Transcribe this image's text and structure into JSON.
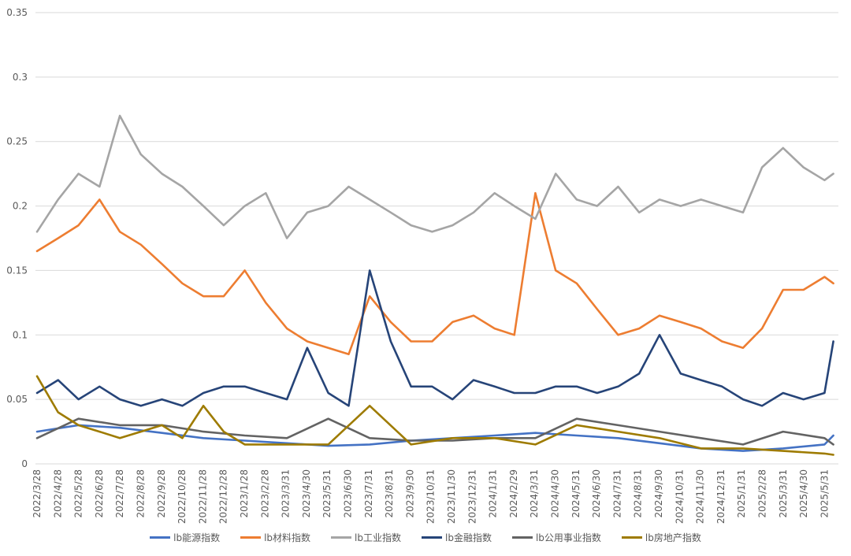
{
  "chart_data": {
    "type": "line",
    "title": "",
    "xlabel": "",
    "ylabel": "",
    "ylim": [
      0,
      0.35
    ],
    "yticks": [
      "0",
      "0.05",
      "0.1",
      "0.15",
      "0.2",
      "0.25",
      "0.3",
      "0.35"
    ],
    "xticks": [
      "2022/3/28",
      "2022/4/28",
      "2022/5/28",
      "2022/6/28",
      "2022/7/28",
      "2022/8/28",
      "2022/9/28",
      "2022/10/28",
      "2022/11/28",
      "2022/12/28",
      "2023/1/28",
      "2023/2/28",
      "2023/3/31",
      "2023/4/30",
      "2023/5/31",
      "2023/6/30",
      "2023/7/31",
      "2023/8/31",
      "2023/9/30",
      "2023/10/31",
      "2023/11/30",
      "2023/12/31",
      "2024/1/31",
      "2024/2/29",
      "2024/3/31",
      "2024/4/30",
      "2024/5/31",
      "2024/6/30",
      "2024/7/31",
      "2024/8/31",
      "2024/9/30",
      "2024/10/31",
      "2024/11/30",
      "2024/12/31",
      "2025/1/31",
      "2025/2/28",
      "2025/3/31",
      "2025/4/30",
      "2025/5/31"
    ],
    "grid": true,
    "legend_position": "bottom",
    "series": [
      {
        "name": "lb能源指数",
        "color": "#4472C4",
        "x": [
          "2022/3/28",
          "2022/5/28",
          "2022/7/28",
          "2022/9/28",
          "2022/11/28",
          "2023/1/28",
          "2023/3/31",
          "2023/5/31",
          "2023/7/31",
          "2023/9/30",
          "2023/11/30",
          "2024/1/31",
          "2024/3/31",
          "2024/5/31",
          "2024/7/31",
          "2024/9/30",
          "2024/11/30",
          "2025/1/31",
          "2025/3/31",
          "2025/5/31",
          "2025/6/13"
        ],
        "values": [
          0.025,
          0.03,
          0.028,
          0.024,
          0.02,
          0.018,
          0.016,
          0.014,
          0.015,
          0.018,
          0.02,
          0.022,
          0.024,
          0.022,
          0.02,
          0.016,
          0.012,
          0.01,
          0.012,
          0.015,
          0.022
        ]
      },
      {
        "name": "lb材料指数",
        "color": "#ED7D31",
        "x": [
          "2022/3/28",
          "2022/4/28",
          "2022/5/28",
          "2022/6/28",
          "2022/7/28",
          "2022/8/28",
          "2022/9/28",
          "2022/10/28",
          "2022/11/28",
          "2022/12/28",
          "2023/1/28",
          "2023/2/28",
          "2023/3/31",
          "2023/4/30",
          "2023/5/31",
          "2023/6/30",
          "2023/7/31",
          "2023/8/31",
          "2023/9/30",
          "2023/10/31",
          "2023/11/30",
          "2023/12/31",
          "2024/1/31",
          "2024/2/29",
          "2024/3/31",
          "2024/4/30",
          "2024/5/31",
          "2024/6/30",
          "2024/7/31",
          "2024/8/31",
          "2024/9/30",
          "2024/10/31",
          "2024/11/30",
          "2024/12/31",
          "2025/1/31",
          "2025/2/28",
          "2025/3/31",
          "2025/4/30",
          "2025/5/31",
          "2025/6/13"
        ],
        "values": [
          0.165,
          0.175,
          0.185,
          0.205,
          0.18,
          0.17,
          0.155,
          0.14,
          0.13,
          0.13,
          0.15,
          0.125,
          0.105,
          0.095,
          0.09,
          0.085,
          0.13,
          0.11,
          0.095,
          0.095,
          0.11,
          0.115,
          0.105,
          0.1,
          0.21,
          0.15,
          0.14,
          0.12,
          0.1,
          0.105,
          0.115,
          0.11,
          0.105,
          0.095,
          0.09,
          0.105,
          0.135,
          0.135,
          0.145,
          0.14
        ]
      },
      {
        "name": "lb工业指数",
        "color": "#A5A5A5",
        "x": [
          "2022/3/28",
          "2022/4/28",
          "2022/5/28",
          "2022/6/28",
          "2022/7/28",
          "2022/8/28",
          "2022/9/28",
          "2022/10/28",
          "2022/11/28",
          "2022/12/28",
          "2023/1/28",
          "2023/2/28",
          "2023/3/31",
          "2023/4/30",
          "2023/5/31",
          "2023/6/30",
          "2023/7/31",
          "2023/8/31",
          "2023/9/30",
          "2023/10/31",
          "2023/11/30",
          "2023/12/31",
          "2024/1/31",
          "2024/2/29",
          "2024/3/31",
          "2024/4/30",
          "2024/5/31",
          "2024/6/30",
          "2024/7/31",
          "2024/8/31",
          "2024/9/30",
          "2024/10/31",
          "2024/11/30",
          "2024/12/31",
          "2025/1/31",
          "2025/2/28",
          "2025/3/31",
          "2025/4/30",
          "2025/5/31",
          "2025/6/13"
        ],
        "values": [
          0.18,
          0.205,
          0.225,
          0.215,
          0.27,
          0.24,
          0.225,
          0.215,
          0.2,
          0.185,
          0.2,
          0.21,
          0.175,
          0.195,
          0.2,
          0.215,
          0.205,
          0.195,
          0.185,
          0.18,
          0.185,
          0.195,
          0.21,
          0.2,
          0.19,
          0.225,
          0.205,
          0.2,
          0.215,
          0.195,
          0.205,
          0.2,
          0.205,
          0.2,
          0.195,
          0.23,
          0.245,
          0.23,
          0.22,
          0.225
        ]
      },
      {
        "name": "lb金融指数",
        "color": "#264478",
        "x": [
          "2022/3/28",
          "2022/4/28",
          "2022/5/28",
          "2022/6/28",
          "2022/7/28",
          "2022/8/28",
          "2022/9/28",
          "2022/10/28",
          "2022/11/28",
          "2022/12/28",
          "2023/1/28",
          "2023/2/28",
          "2023/3/31",
          "2023/4/30",
          "2023/5/31",
          "2023/6/30",
          "2023/7/31",
          "2023/8/31",
          "2023/9/30",
          "2023/10/31",
          "2023/11/30",
          "2023/12/31",
          "2024/1/31",
          "2024/2/29",
          "2024/3/31",
          "2024/4/30",
          "2024/5/31",
          "2024/6/30",
          "2024/7/31",
          "2024/8/31",
          "2024/9/30",
          "2024/10/31",
          "2024/11/30",
          "2024/12/31",
          "2025/1/31",
          "2025/2/28",
          "2025/3/31",
          "2025/4/30",
          "2025/5/31",
          "2025/6/13"
        ],
        "values": [
          0.055,
          0.065,
          0.05,
          0.06,
          0.05,
          0.045,
          0.05,
          0.045,
          0.055,
          0.06,
          0.06,
          0.055,
          0.05,
          0.09,
          0.055,
          0.045,
          0.15,
          0.095,
          0.06,
          0.06,
          0.05,
          0.065,
          0.06,
          0.055,
          0.055,
          0.06,
          0.06,
          0.055,
          0.06,
          0.07,
          0.1,
          0.07,
          0.065,
          0.06,
          0.05,
          0.045,
          0.055,
          0.05,
          0.055,
          0.095
        ]
      },
      {
        "name": "lb公用事业指数",
        "color": "#636363",
        "x": [
          "2022/3/28",
          "2022/5/28",
          "2022/7/28",
          "2022/9/28",
          "2022/11/28",
          "2023/1/28",
          "2023/3/31",
          "2023/5/31",
          "2023/7/31",
          "2023/9/30",
          "2023/11/30",
          "2024/1/31",
          "2024/3/31",
          "2024/5/31",
          "2024/7/31",
          "2024/9/30",
          "2024/11/30",
          "2025/1/31",
          "2025/3/31",
          "2025/5/31",
          "2025/6/13"
        ],
        "values": [
          0.02,
          0.035,
          0.03,
          0.03,
          0.025,
          0.022,
          0.02,
          0.035,
          0.02,
          0.018,
          0.018,
          0.02,
          0.02,
          0.035,
          0.03,
          0.025,
          0.02,
          0.015,
          0.025,
          0.02,
          0.015
        ]
      },
      {
        "name": "lb房地产指数",
        "color": "#9E7B00",
        "x": [
          "2022/3/28",
          "2022/4/28",
          "2022/5/28",
          "2022/6/28",
          "2022/7/28",
          "2022/8/28",
          "2022/9/28",
          "2022/10/28",
          "2022/11/28",
          "2022/12/28",
          "2023/1/28",
          "2023/3/31",
          "2023/5/31",
          "2023/7/31",
          "2023/9/30",
          "2023/11/30",
          "2024/1/31",
          "2024/3/31",
          "2024/5/31",
          "2024/7/31",
          "2024/9/30",
          "2024/11/30",
          "2025/1/31",
          "2025/3/31",
          "2025/5/31",
          "2025/6/13"
        ],
        "values": [
          0.068,
          0.04,
          0.03,
          0.025,
          0.02,
          0.025,
          0.03,
          0.02,
          0.045,
          0.025,
          0.015,
          0.015,
          0.015,
          0.045,
          0.015,
          0.02,
          0.02,
          0.015,
          0.03,
          0.025,
          0.02,
          0.012,
          0.012,
          0.01,
          0.008,
          0.007
        ]
      }
    ]
  }
}
